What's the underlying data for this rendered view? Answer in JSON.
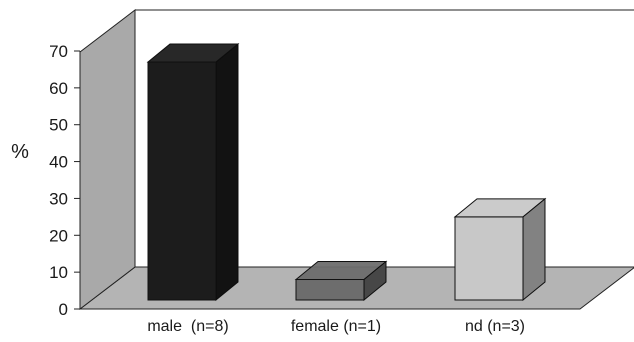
{
  "chart_data": {
    "type": "bar",
    "style": "3d",
    "categories": [
      "male  (n=8)",
      "female (n=1)",
      "nd (n=3)"
    ],
    "values": [
      67,
      8,
      25
    ],
    "ylabel": "%",
    "xlabel": "",
    "ylim": [
      0,
      70
    ],
    "yticks": [
      0,
      10,
      20,
      30,
      40,
      50,
      60,
      70
    ],
    "grid": false,
    "legend": "none",
    "bar_colors": [
      "#1c1c1c",
      "#6d6d6d",
      "#c8c8c8"
    ],
    "wall_color": "#a9a9a9",
    "floor_color": "#b4b4b4"
  }
}
